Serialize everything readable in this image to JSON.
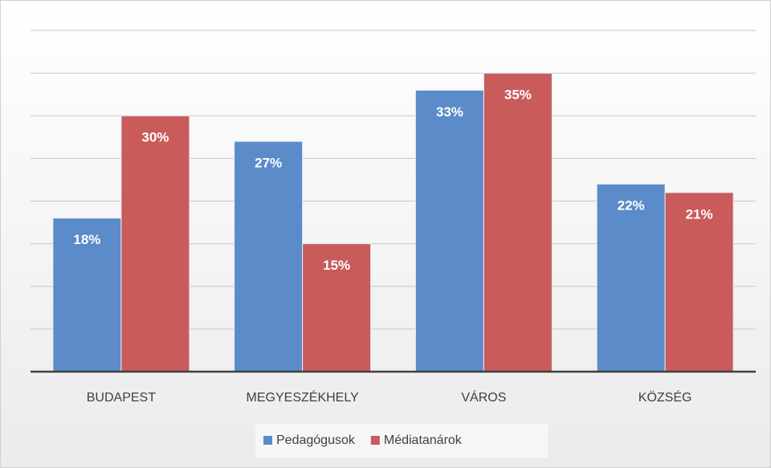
{
  "chart_data": {
    "type": "bar",
    "categories": [
      "BUDAPEST",
      "MEGYESZÉKHELY",
      "VÁROS",
      "KÖZSÉG"
    ],
    "series": [
      {
        "name": "Pedagógusok",
        "color": "#5b8bc9",
        "values": [
          18,
          27,
          33,
          22
        ],
        "value_labels": [
          "18%",
          "27%",
          "33%",
          "22%"
        ]
      },
      {
        "name": "Médiatanárok",
        "color": "#c95b5b",
        "values": [
          30,
          15,
          35,
          21
        ],
        "value_labels": [
          "30%",
          "15%",
          "35%",
          "21%"
        ]
      }
    ],
    "ylim": [
      0,
      40
    ],
    "yticks": [
      0,
      5,
      10,
      15,
      20,
      25,
      30,
      35,
      40
    ],
    "grid": true,
    "legend": "bottom"
  }
}
